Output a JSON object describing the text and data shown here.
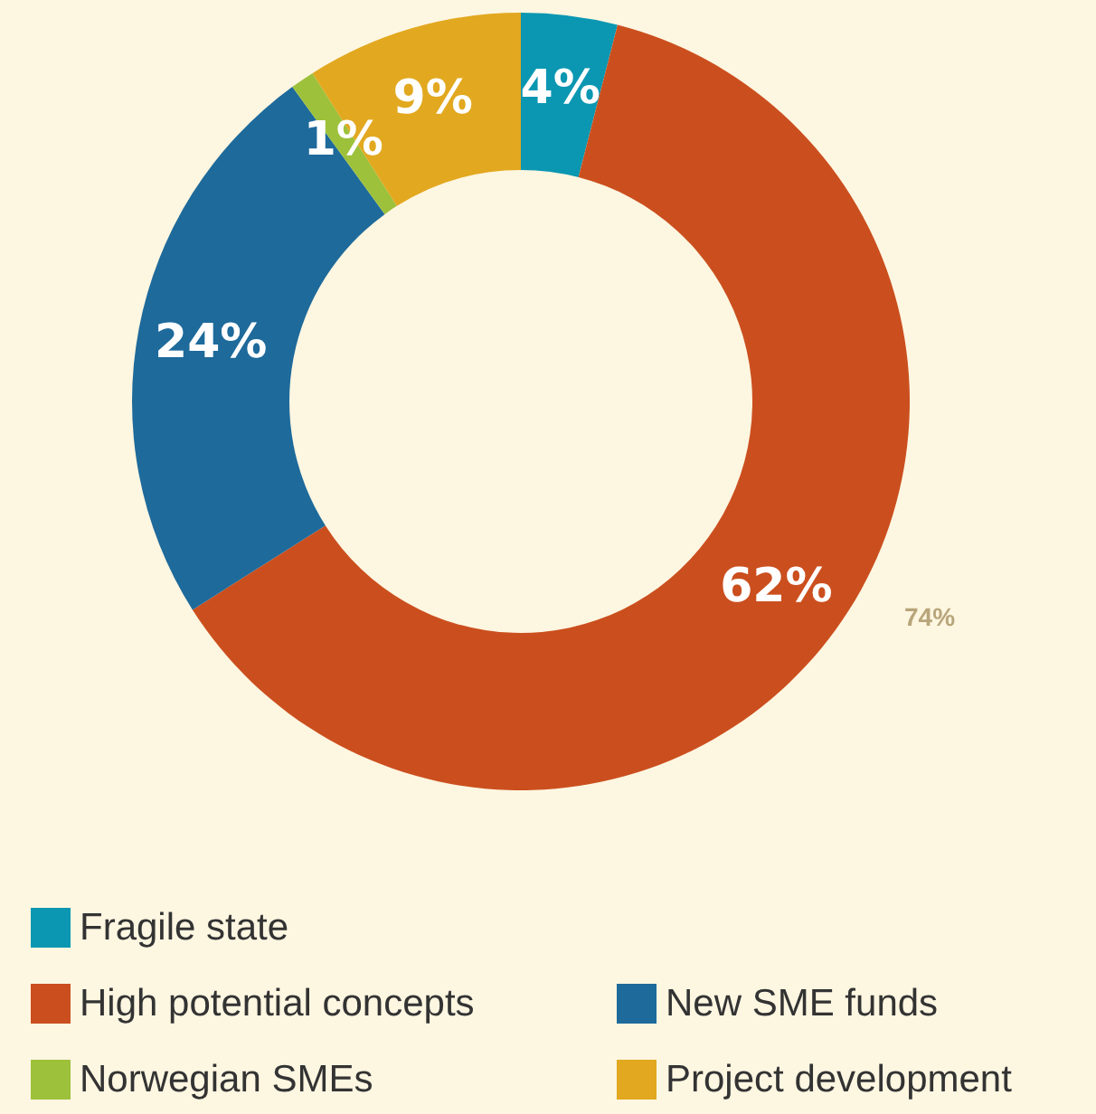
{
  "chart_data": {
    "type": "donut",
    "categories": [
      "Fragile state",
      "High potential concepts",
      "New SME funds",
      "Norwegian SMEs",
      "Project development"
    ],
    "values": [
      4,
      62,
      24,
      1,
      9
    ],
    "value_labels": [
      "4%",
      "62%",
      "24%",
      "1%",
      "9%"
    ],
    "colors": [
      "#0b97b2",
      "#cb4f1e",
      "#1e6a9b",
      "#9dc13b",
      "#e2a81f"
    ],
    "legend": "bottom",
    "annotations": [
      "74%"
    ]
  }
}
